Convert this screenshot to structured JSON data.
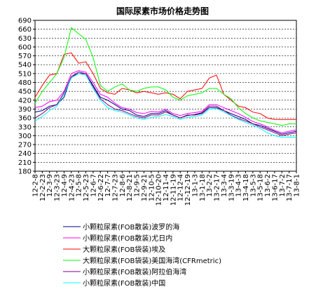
{
  "chart_data": {
    "type": "line",
    "title": "国际尿素市场价格走势图",
    "ylim": [
      180,
      690
    ],
    "yticks": [
      690,
      660,
      630,
      600,
      570,
      540,
      510,
      480,
      450,
      420,
      390,
      360,
      330,
      300,
      270,
      240,
      210,
      180
    ],
    "x_tick_labels": [
      "12-2-8",
      "12-2-23",
      "12-3-9",
      "12-3-23",
      "12-4-9",
      "12-4-23",
      "12-5-8",
      "12-5-23",
      "12-6-7",
      "12-6-22",
      "12-7-7",
      "12-7-23",
      "12-8-6",
      "12-8-21",
      "12-9-5",
      "12-9-21",
      "12-10-5",
      "12-10-20",
      "12-11-4",
      "12-11-19",
      "12-12-4",
      "12-12-19",
      "13-1-3",
      "13-1-18",
      "13-2-2",
      "13-2-17",
      "13-3-4",
      "13-3-19",
      "13-4-3",
      "13-4-18",
      "13-5-3",
      "13-5-18",
      "13-6-2",
      "13-6-17",
      "13-7-2",
      "13-7-17",
      "13-8-1"
    ],
    "grid": true,
    "legend_position": "bottom",
    "series": [
      {
        "name": "小颗粒尿素(FOB散装)波罗的海",
        "color": "#000080",
        "values": [
          380,
          385,
          400,
          405,
          430,
          500,
          510,
          510,
          470,
          430,
          420,
          405,
          390,
          385,
          370,
          365,
          375,
          375,
          385,
          370,
          360,
          370,
          370,
          375,
          395,
          395,
          385,
          375,
          365,
          355,
          340,
          335,
          325,
          315,
          305,
          310,
          315
        ]
      },
      {
        "name": "小颗粒尿素(FOB散装)尤日内",
        "color": "#ff00ff",
        "values": [
          395,
          400,
          415,
          420,
          450,
          510,
          520,
          515,
          480,
          440,
          430,
          410,
          395,
          390,
          378,
          375,
          382,
          380,
          390,
          375,
          368,
          375,
          378,
          382,
          405,
          405,
          395,
          385,
          375,
          362,
          348,
          340,
          330,
          318,
          310,
          315,
          320
        ]
      },
      {
        "name": "大颗粒尿素(FOB袋装)埃及",
        "color": "#ff0000",
        "values": [
          430,
          470,
          505,
          510,
          575,
          580,
          545,
          550,
          510,
          460,
          445,
          440,
          460,
          455,
          445,
          450,
          445,
          440,
          445,
          440,
          425,
          450,
          455,
          460,
          495,
          505,
          440,
          420,
          400,
          395,
          380,
          375,
          360,
          355,
          355,
          355,
          355
        ]
      },
      {
        "name": "大颗粒尿素(FOB袋装)美国海湾(CFRmetric)",
        "color": "#00ff00",
        "values": [
          410,
          450,
          480,
          510,
          565,
          665,
          645,
          625,
          565,
          470,
          450,
          465,
          475,
          455,
          450,
          460,
          465,
          465,
          455,
          430,
          420,
          435,
          440,
          445,
          460,
          460,
          440,
          425,
          395,
          375,
          360,
          350,
          345,
          340,
          335,
          340,
          340
        ]
      },
      {
        "name": "小颗粒尿素(FOB散装)阿拉伯海湾",
        "color": "#800080",
        "values": [
          360,
          375,
          395,
          405,
          445,
          500,
          515,
          510,
          465,
          425,
          405,
          390,
          385,
          375,
          365,
          360,
          370,
          370,
          380,
          370,
          360,
          368,
          372,
          378,
          400,
          400,
          385,
          370,
          358,
          350,
          340,
          330,
          320,
          310,
          300,
          305,
          310
        ]
      },
      {
        "name": "小颗粒尿素(FOB散装)中国",
        "color": "#00ffff",
        "values": [
          350,
          365,
          385,
          400,
          440,
          495,
          510,
          505,
          460,
          420,
          395,
          385,
          380,
          370,
          360,
          355,
          362,
          365,
          372,
          365,
          355,
          362,
          365,
          370,
          390,
          392,
          380,
          368,
          355,
          345,
          335,
          325,
          310,
          300,
          295,
          295,
          295
        ]
      }
    ]
  }
}
